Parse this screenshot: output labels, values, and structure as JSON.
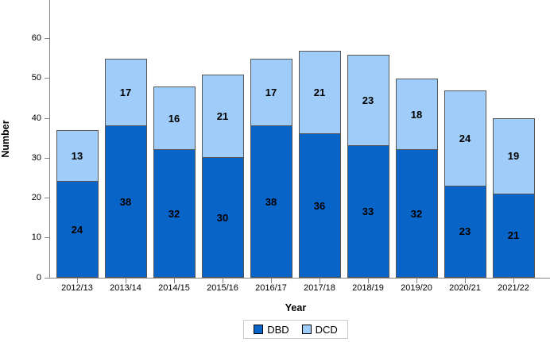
{
  "chart_data": {
    "type": "bar",
    "stacked": true,
    "title": "",
    "xlabel": "Year",
    "ylabel": "Number",
    "categories": [
      "2012/13",
      "2013/14",
      "2014/15",
      "2015/16",
      "2016/17",
      "2017/18",
      "2018/19",
      "2019/20",
      "2020/21",
      "2021/22"
    ],
    "series": [
      {
        "name": "DBD",
        "color": "#0964C8",
        "values": [
          24,
          38,
          32,
          30,
          38,
          36,
          33,
          32,
          23,
          21
        ]
      },
      {
        "name": "DCD",
        "color": "#9FCCF8",
        "values": [
          13,
          17,
          16,
          21,
          17,
          21,
          23,
          18,
          24,
          19
        ]
      }
    ],
    "stack_totals": [
      37,
      55,
      48,
      51,
      55,
      57,
      56,
      50,
      47,
      40
    ],
    "yticks": [
      0,
      10,
      20,
      30,
      40,
      50,
      60
    ],
    "ylim": [
      0,
      69.7
    ],
    "grid": false,
    "legend_position": "bottom",
    "bar_outline_color": "#565656",
    "axis_color": "#868686",
    "data_labels": true
  }
}
